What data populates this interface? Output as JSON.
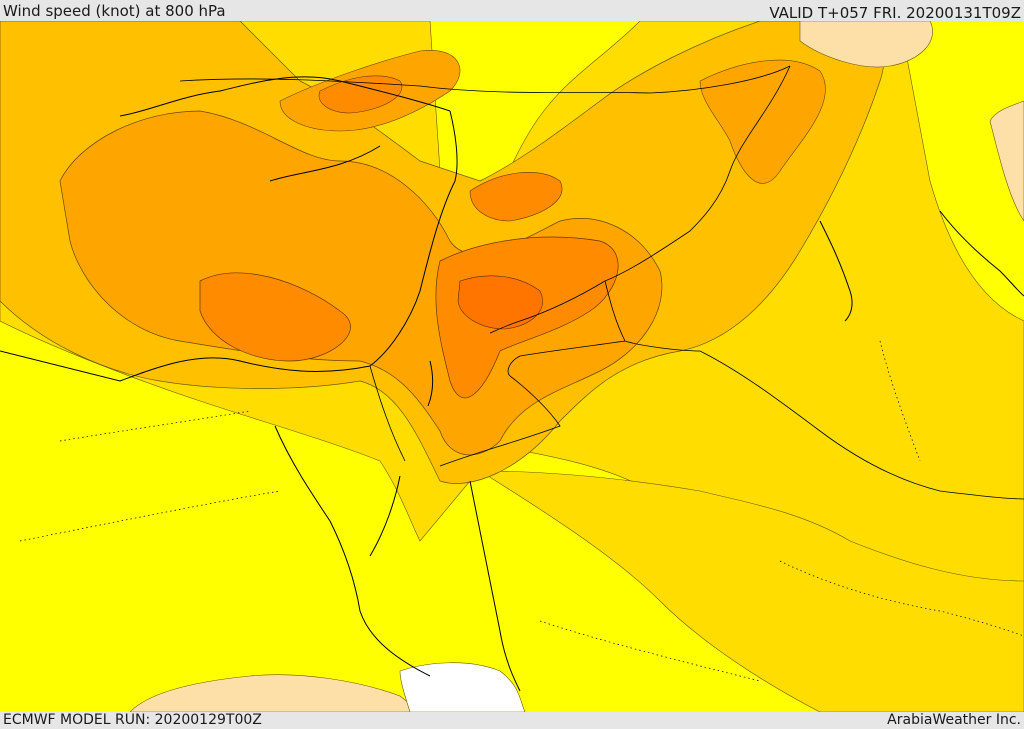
{
  "header": {
    "title": "Wind speed (knot) at 800 hPa",
    "valid": "VALID T+057 FRI. 20200131T09Z"
  },
  "footer": {
    "model_run": "ECMWF MODEL RUN: 20200129T00Z",
    "credit": "ArabiaWeather Inc."
  },
  "map": {
    "colors": {
      "calm": "#ffffff",
      "light": "#fde0a8",
      "band1": "#ffff00",
      "band2": "#ffdd00",
      "band3": "#ffc000",
      "band4": "#ffa500",
      "band5": "#ff8c00",
      "band6": "#ff7500",
      "border": "#000000"
    }
  }
}
